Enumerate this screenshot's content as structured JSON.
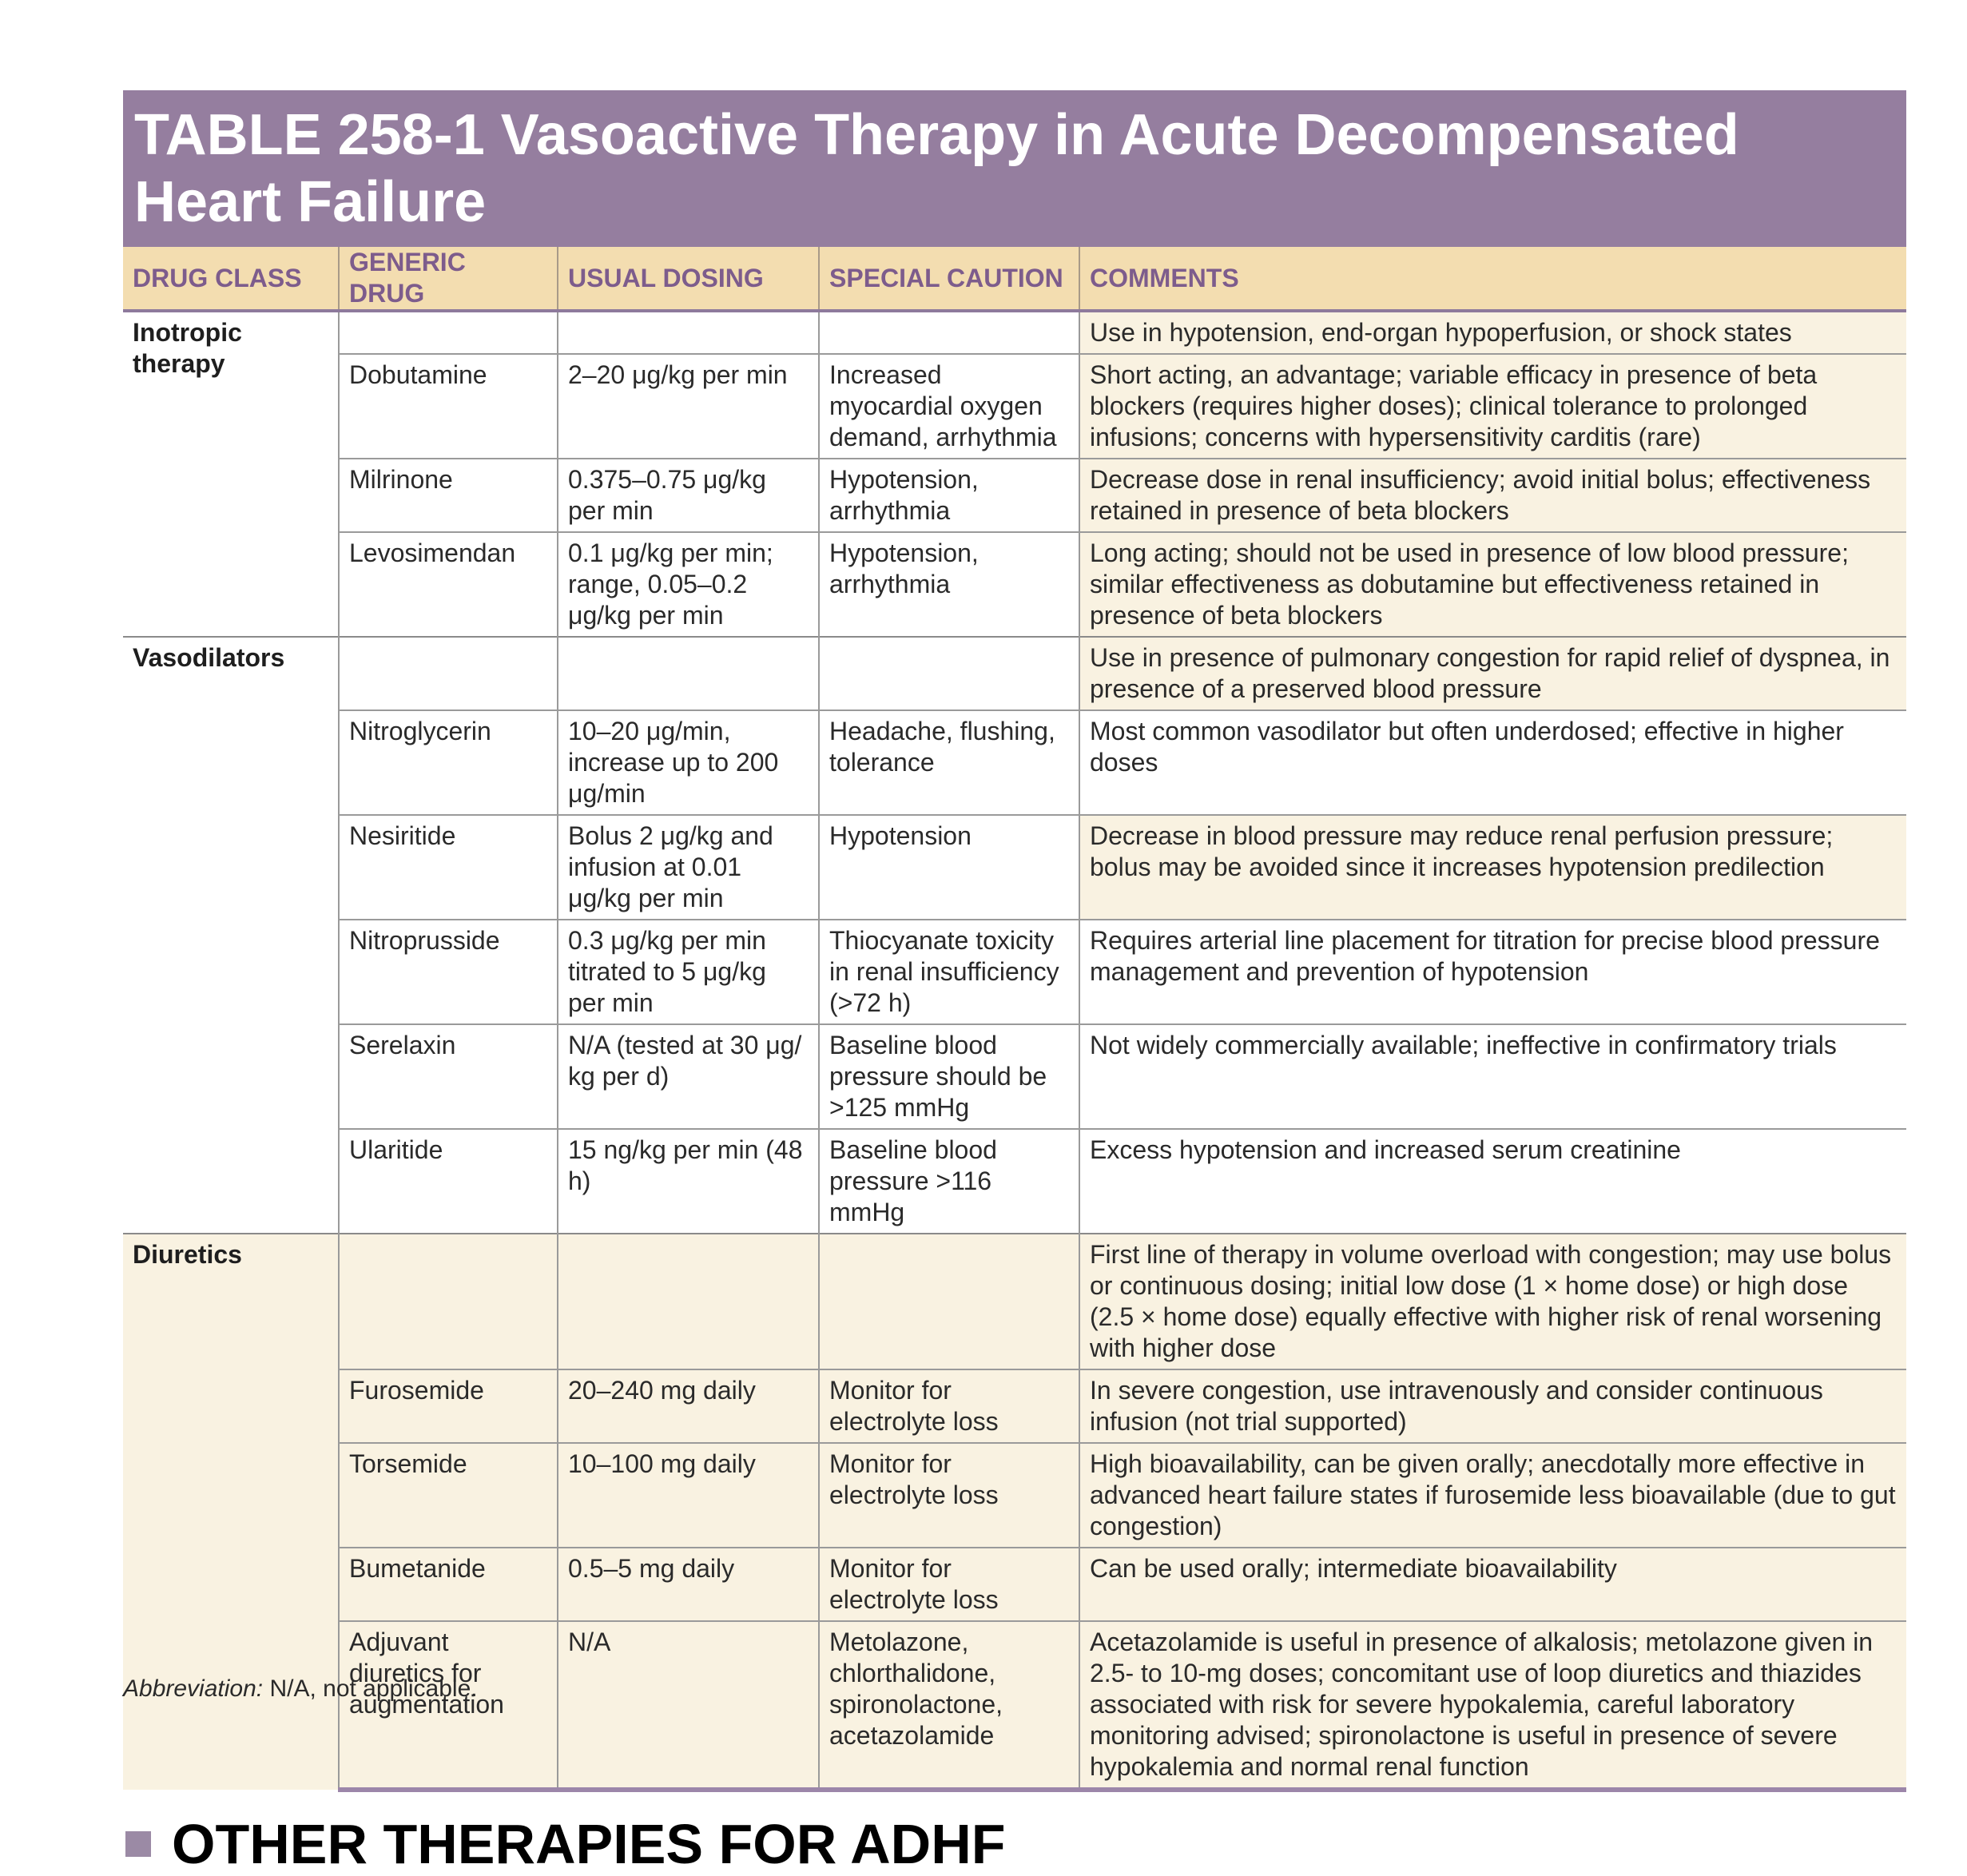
{
  "table": {
    "title": "TABLE 258-1 Vasoactive Therapy in Acute Decompensated Heart Failure",
    "headers": [
      "DRUG CLASS",
      "GENERIC DRUG",
      "USUAL DOSING",
      "SPECIAL CAUTION",
      "COMMENTS"
    ],
    "rows": [
      {
        "drug_class": "Inotropic therapy",
        "generic_drug": "",
        "usual_dosing": "",
        "special_caution": "",
        "comments": "Use in hypotension, end-organ hypoperfusion, or shock states"
      },
      {
        "drug_class": "",
        "generic_drug": "Dobutamine",
        "usual_dosing": "2–20 μg/kg per min",
        "special_caution": "Increased myocardial oxygen demand, arrhythmia",
        "comments": "Short acting, an advantage; variable efficacy in presence of beta blockers (requires higher doses); clinical tolerance to prolonged infusions; concerns with hypersensitivity carditis (rare)"
      },
      {
        "drug_class": "",
        "generic_drug": "Milrinone",
        "usual_dosing": "0.375–0.75 μg/kg per min",
        "special_caution": "Hypotension, arrhythmia",
        "comments": "Decrease dose in renal insufficiency; avoid initial bolus; effectiveness retained in presence of beta blockers"
      },
      {
        "drug_class": "",
        "generic_drug": "Levosimendan",
        "usual_dosing": "0.1 μg/kg per min; range, 0.05–0.2 μg/kg per min",
        "special_caution": "Hypotension, arrhythmia",
        "comments": "Long acting; should not be used in presence of low blood pressure; similar effectiveness as dobutamine but effectiveness retained in presence of beta blockers"
      },
      {
        "drug_class": "Vasodilators",
        "generic_drug": "",
        "usual_dosing": "",
        "special_caution": "",
        "comments": "Use in presence of pulmonary congestion for rapid relief of dyspnea, in presence of a preserved blood pressure"
      },
      {
        "drug_class": "",
        "generic_drug": "Nitroglycerin",
        "usual_dosing": "10–20 μg/min, increase up to 200 μg/min",
        "special_caution": "Headache, flushing, tolerance",
        "comments": "Most common vasodilator but often underdosed; effective in higher doses"
      },
      {
        "drug_class": "",
        "generic_drug": "Nesiritide",
        "usual_dosing": "Bolus 2 μg/kg and infusion at 0.01 μg/kg per min",
        "special_caution": "Hypotension",
        "comments": "Decrease in blood pressure may reduce renal perfusion pressure; bolus may be avoided since it increases hypotension predilection"
      },
      {
        "drug_class": "",
        "generic_drug": "Nitroprusside",
        "usual_dosing": "0.3 μg/kg per min titrated to 5 μg/kg per min",
        "special_caution": "Thiocyanate toxicity in renal insufficiency (>72 h)",
        "comments": "Requires arterial line placement for titration for precise blood pressure management and prevention of hypotension"
      },
      {
        "drug_class": "",
        "generic_drug": "Serelaxin",
        "usual_dosing": "N/A (tested at 30 μg/ kg per d)",
        "special_caution": "Baseline blood pressure should be >125 mmHg",
        "comments": "Not widely commercially available; ineffective in confirmatory trials"
      },
      {
        "drug_class": "",
        "generic_drug": "Ularitide",
        "usual_dosing": "15 ng/kg per min (48 h)",
        "special_caution": "Baseline blood pressure >116 mmHg",
        "comments": "Excess hypotension and increased serum creatinine"
      },
      {
        "drug_class": "Diuretics",
        "generic_drug": "",
        "usual_dosing": "",
        "special_caution": "",
        "comments": "First line of therapy in volume overload with congestion; may use bolus or continuous dosing; initial low dose (1 × home dose) or high dose (2.5 × home dose) equally effective with higher risk of renal worsening with higher dose"
      },
      {
        "drug_class": "",
        "generic_drug": "Furosemide",
        "usual_dosing": "20–240 mg daily",
        "special_caution": "Monitor for electrolyte loss",
        "comments": "In severe congestion, use intravenously and consider continuous infusion (not trial supported)"
      },
      {
        "drug_class": "",
        "generic_drug": "Torsemide",
        "usual_dosing": "10–100 mg daily",
        "special_caution": "Monitor for electrolyte loss",
        "comments": "High bioavailability, can be given orally; anecdotally more effective in advanced heart failure states if furosemide less bioavailable (due to gut congestion)"
      },
      {
        "drug_class": "",
        "generic_drug": "Bumetanide",
        "usual_dosing": "0.5–5 mg daily",
        "special_caution": "Monitor for electrolyte loss",
        "comments": "Can be used orally; intermediate bioavailability"
      },
      {
        "drug_class": "",
        "generic_drug": "Adjuvant diuretics for augmentation",
        "usual_dosing": "N/A",
        "special_caution": "Metolazone, chlorthalidone, spironolactone, acetazolamide",
        "comments": "Acetazolamide is useful in presence of alkalosis; metolazone given in 2.5- to 10-mg doses; concomitant use of loop diuretics and thiazides associated with risk for severe hypokalemia, careful laboratory monitoring advised; spironolactone is useful in presence of severe hypokalemia and normal renal function"
      }
    ]
  },
  "footnote": {
    "label": "Abbreviation:",
    "text": "N/A, not applicable."
  },
  "section": {
    "heading": "OTHER THERAPIES FOR ADHF"
  },
  "colors": {
    "title_bg": "#957e9f",
    "header_bg": "#f3ddb0",
    "header_text": "#7d5c8c",
    "cell_cream": "#f9f2e1",
    "bullet": "#9b8aa5"
  }
}
